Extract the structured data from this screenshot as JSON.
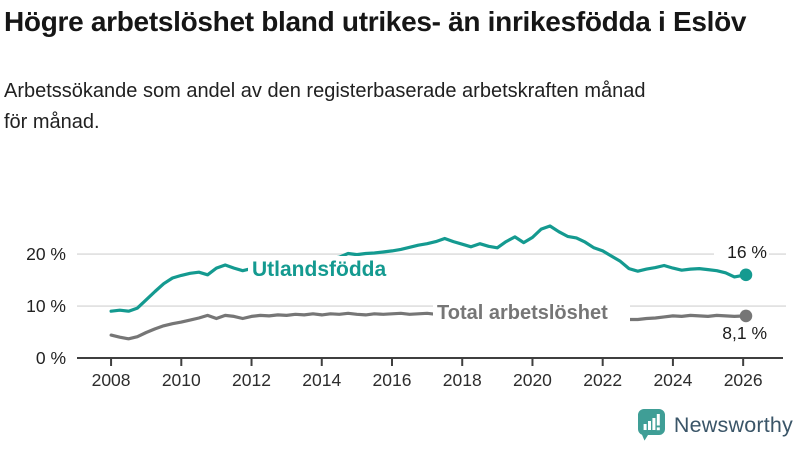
{
  "header": {
    "title": "Högre arbetslöshet bland utrikes- än inrikesfödda i Eslöv",
    "subtitle": "Arbetssökande som andel av den registerbaserade arbetskraften månad för månad."
  },
  "colors": {
    "accent_teal": "#149a90",
    "series_gray": "#767676",
    "grid": "#d9d9d9",
    "axis": "#3f3f3f",
    "logo_teal": "#3f9e96",
    "logo_text": "#3a5568"
  },
  "branding": {
    "name": "Newsworthy",
    "icon": "newsworthy-chart-bubble-icon"
  },
  "chart_data": {
    "type": "line",
    "title": "Högre arbetslöshet bland utrikes- än inrikesfödda i Eslöv",
    "subtitle": "Arbetssökande som andel av den registerbaserade arbetskraften månad för månad.",
    "x_unit": "decimal year (quarterly samples of monthly data)",
    "xlim": [
      2007.03,
      2027.22
    ],
    "ylim": [
      0,
      27.9
    ],
    "grid": "horizontal",
    "legend": "inline-labels",
    "xticks": [
      2008,
      2010,
      2012,
      2014,
      2016,
      2018,
      2020,
      2022,
      2024,
      2026
    ],
    "yticks": [
      {
        "v": 0,
        "label": "0 %"
      },
      {
        "v": 10,
        "label": "10 %"
      },
      {
        "v": 20,
        "label": "20 %"
      }
    ],
    "x": [
      2008,
      2008.25,
      2008.5,
      2008.75,
      2009,
      2009.25,
      2009.5,
      2009.75,
      2010,
      2010.25,
      2010.5,
      2010.75,
      2011,
      2011.25,
      2011.5,
      2011.75,
      2012,
      2012.25,
      2012.5,
      2012.75,
      2013,
      2013.25,
      2013.5,
      2013.75,
      2014,
      2014.25,
      2014.5,
      2014.75,
      2015,
      2015.25,
      2015.5,
      2015.75,
      2016,
      2016.25,
      2016.5,
      2016.75,
      2017,
      2017.25,
      2017.5,
      2017.75,
      2018,
      2018.25,
      2018.5,
      2018.75,
      2019,
      2019.25,
      2019.5,
      2019.75,
      2020,
      2020.25,
      2020.5,
      2020.75,
      2021,
      2021.25,
      2021.5,
      2021.75,
      2022,
      2022.25,
      2022.5,
      2022.75,
      2023,
      2023.25,
      2023.5,
      2023.75,
      2024,
      2024.25,
      2024.5,
      2024.75,
      2025,
      2025.25,
      2025.5,
      2025.75,
      2026.08
    ],
    "series": [
      {
        "name": "Utlandsfödda",
        "color": "#149a90",
        "end_label": "16 %",
        "end_value": 16.0,
        "values": [
          9.0,
          9.2,
          9.0,
          9.6,
          11.2,
          12.8,
          14.3,
          15.4,
          15.9,
          16.3,
          16.5,
          16.0,
          17.3,
          17.9,
          17.3,
          16.8,
          17.2,
          17.4,
          17.5,
          17.7,
          17.9,
          18.1,
          18.4,
          18.6,
          18.9,
          19.1,
          19.4,
          20.1,
          19.9,
          20.1,
          20.2,
          20.4,
          20.6,
          20.9,
          21.3,
          21.7,
          22.0,
          22.4,
          23.0,
          22.4,
          21.9,
          21.4,
          22.0,
          21.5,
          21.2,
          22.4,
          23.3,
          22.2,
          23.2,
          24.8,
          25.4,
          24.3,
          23.4,
          23.1,
          22.3,
          21.2,
          20.6,
          19.6,
          18.6,
          17.2,
          16.7,
          17.1,
          17.4,
          17.8,
          17.3,
          16.9,
          17.1,
          17.2,
          17.0,
          16.8,
          16.4,
          15.6,
          16.0
        ]
      },
      {
        "name": "Total arbetslöshet",
        "color": "#767676",
        "end_label": "8,1 %",
        "end_value": 8.1,
        "values": [
          4.4,
          4.0,
          3.7,
          4.1,
          4.9,
          5.6,
          6.2,
          6.6,
          6.9,
          7.3,
          7.7,
          8.2,
          7.6,
          8.2,
          8.0,
          7.6,
          8.0,
          8.2,
          8.1,
          8.3,
          8.2,
          8.4,
          8.3,
          8.5,
          8.3,
          8.5,
          8.4,
          8.6,
          8.4,
          8.3,
          8.5,
          8.4,
          8.5,
          8.6,
          8.4,
          8.5,
          8.6,
          8.4,
          8.2,
          8.1,
          8.0,
          7.8,
          7.7,
          7.6,
          7.4,
          7.3,
          7.5,
          7.7,
          8.4,
          9.3,
          9.5,
          9.2,
          8.9,
          8.6,
          8.3,
          7.9,
          7.7,
          7.6,
          7.5,
          7.4,
          7.4,
          7.6,
          7.7,
          7.9,
          8.1,
          8.0,
          8.2,
          8.1,
          8.0,
          8.2,
          8.1,
          8.0,
          8.1
        ]
      }
    ]
  }
}
